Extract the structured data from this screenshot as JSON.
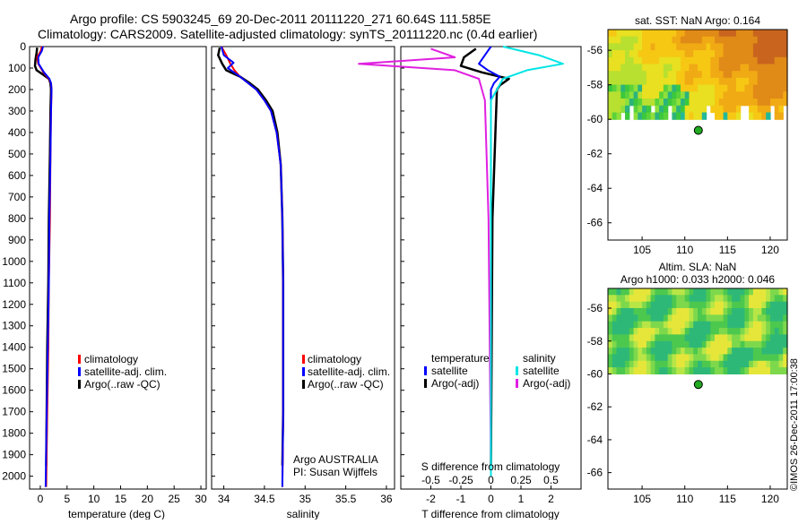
{
  "header": {
    "title_line1": "Argo profile: CS 5903245_69 20-Dec-2011 20111220_271 60.64S 111.585E",
    "title_line2": "Climatology: CARS2009. Satellite-adjusted climatology: synTS_20111220.nc (0.4d earlier)"
  },
  "colors": {
    "climatology": "#ff0000",
    "satellite": "#0000ff",
    "argo": "#000000",
    "sal_satellite": "#00e5e5",
    "sal_argo": "#e020e0",
    "argo_marker": "#22aa22"
  },
  "chart_data": [
    {
      "id": "temperature",
      "type": "line",
      "xlabel": "temperature (deg C)",
      "ylabel": "",
      "xlim": [
        -2,
        31
      ],
      "ylim": [
        2060,
        0
      ],
      "xticks": [
        0,
        5,
        10,
        15,
        20,
        25,
        30
      ],
      "yticks": [
        0,
        100,
        200,
        300,
        400,
        500,
        600,
        700,
        800,
        900,
        1000,
        1100,
        1200,
        1300,
        1400,
        1500,
        1600,
        1700,
        1800,
        1900,
        2000
      ],
      "legend": [
        "climatology",
        "satellite-adj. clim.",
        "Argo(..raw -QC)"
      ],
      "series": [
        {
          "name": "climatology",
          "x": [
            0.3,
            0.1,
            -0.6,
            -0.4,
            0.6,
            1.6,
            2.0,
            2.1,
            2.0,
            1.9,
            1.8,
            1.6,
            1.5,
            1.3,
            1.1
          ],
          "y": [
            0,
            20,
            50,
            80,
            120,
            150,
            170,
            200,
            300,
            500,
            800,
            1100,
            1400,
            1700,
            2050
          ]
        },
        {
          "name": "satellite-adj. clim.",
          "x": [
            0.5,
            0.3,
            -0.4,
            -0.3,
            0.7,
            1.7,
            2.0,
            2.1,
            2.0,
            1.9,
            1.7,
            1.6,
            1.4,
            1.2,
            1.0
          ],
          "y": [
            0,
            20,
            50,
            80,
            120,
            150,
            170,
            200,
            300,
            500,
            800,
            1100,
            1400,
            1700,
            2050
          ]
        },
        {
          "name": "Argo(..raw -QC)",
          "x": [
            -0.6,
            -0.7,
            -0.9,
            -1.0,
            -0.7,
            0.5,
            1.6,
            1.9,
            2.0,
            1.9,
            1.8,
            1.6,
            1.5,
            1.3,
            1.1
          ],
          "y": [
            5,
            30,
            60,
            90,
            110,
            130,
            150,
            170,
            200,
            300,
            500,
            800,
            1100,
            1400,
            1950
          ]
        }
      ]
    },
    {
      "id": "salinity",
      "type": "line",
      "xlabel": "salinity",
      "xlim": [
        33.85,
        36.1
      ],
      "ylim": [
        2060,
        0
      ],
      "xticks": [
        34,
        34.5,
        35,
        35.5,
        36
      ],
      "legend": [
        "climatology",
        "satellite-adj. clim.",
        "Argo(..raw -QC)"
      ],
      "annotation_line1": "Argo AUSTRALIA",
      "annotation_line2": "PI: Susan Wijffels",
      "series": [
        {
          "name": "climatology",
          "x": [
            33.97,
            34.03,
            34.08,
            34.13,
            34.2,
            34.3,
            34.4,
            34.5,
            34.58,
            34.65,
            34.7,
            34.72,
            34.73,
            34.73,
            34.73,
            34.72
          ],
          "y": [
            0,
            40,
            80,
            110,
            140,
            170,
            200,
            250,
            300,
            400,
            550,
            800,
            1100,
            1400,
            1700,
            2050
          ]
        },
        {
          "name": "satellite-adj. clim.",
          "x": [
            33.97,
            34.0,
            34.12,
            34.05,
            34.2,
            34.3,
            34.4,
            34.5,
            34.58,
            34.65,
            34.7,
            34.72,
            34.73,
            34.73,
            34.73,
            34.72
          ],
          "y": [
            0,
            40,
            75,
            100,
            140,
            170,
            200,
            250,
            300,
            400,
            550,
            800,
            1100,
            1400,
            1700,
            2050
          ]
        },
        {
          "name": "Argo(..raw -QC)",
          "x": [
            33.95,
            33.93,
            33.98,
            34.03,
            34.2,
            34.32,
            34.42,
            34.52,
            34.6,
            34.66,
            34.7,
            34.72,
            34.73,
            34.73,
            34.73,
            34.72
          ],
          "y": [
            5,
            40,
            80,
            110,
            140,
            170,
            200,
            250,
            300,
            400,
            550,
            800,
            1100,
            1400,
            1700,
            1950
          ]
        }
      ]
    },
    {
      "id": "difference",
      "type": "line",
      "xlabel": "T difference from climatology",
      "xlabel_top": "S difference from climatology",
      "xlim": [
        -3,
        3
      ],
      "xlim_top": [
        -0.75,
        0.75
      ],
      "ylim": [
        2060,
        0
      ],
      "xticks": [
        -2,
        -1,
        0,
        1,
        2
      ],
      "xticks_top": [
        -0.5,
        -0.25,
        0,
        0.25,
        0.5
      ],
      "legend_temperature_title": "temperature",
      "legend_salinity_title": "salinity",
      "legend_temperature_items": [
        "satellite",
        "Argo(-adj)"
      ],
      "legend_salinity_items": [
        "satellite",
        "Argo(-adj)"
      ],
      "series": [
        {
          "name": "T satellite",
          "x": [
            0.0,
            -0.2,
            -0.4,
            -0.1,
            0.3,
            0.1,
            0.0,
            0.0,
            0.0,
            0.0
          ],
          "y": [
            0,
            40,
            80,
            110,
            140,
            170,
            200,
            300,
            800,
            2000
          ]
        },
        {
          "name": "T Argo(-adj)",
          "x": [
            -0.5,
            -0.9,
            -1.0,
            -0.3,
            0.6,
            0.3,
            0.2,
            0.15,
            0.05,
            0.0
          ],
          "y": [
            10,
            50,
            90,
            120,
            150,
            180,
            200,
            400,
            800,
            1950
          ]
        },
        {
          "name": "S satellite",
          "x": [
            0.1,
            0.4,
            0.6,
            0.3,
            0.1,
            0.0,
            0.0,
            0.0
          ],
          "y": [
            0,
            40,
            80,
            110,
            150,
            250,
            800,
            2000
          ]
        },
        {
          "name": "S Argo(-adj)",
          "x": [
            -0.5,
            -0.3,
            -1.1,
            -0.3,
            -0.1,
            -0.05,
            -0.02,
            0.0
          ],
          "y": [
            10,
            50,
            80,
            110,
            150,
            250,
            800,
            1950
          ]
        }
      ]
    },
    {
      "id": "sst_map",
      "type": "heatmap",
      "title": "sat. SST: NaN Argo: 0.164",
      "xlim": [
        101,
        122
      ],
      "ylim": [
        -67,
        -54.8
      ],
      "xticks": [
        105,
        110,
        115,
        120
      ],
      "yticks": [
        -56,
        -58,
        -60,
        -62,
        -64,
        -66
      ],
      "argo_position": [
        111.585,
        -60.64
      ]
    },
    {
      "id": "sla_map",
      "type": "heatmap",
      "title_line1": "Altim. SLA: NaN",
      "title_line2": "Argo h1000: 0.033 h2000: 0.046",
      "xlim": [
        101,
        122
      ],
      "ylim": [
        -67,
        -54.8
      ],
      "xticks": [
        105,
        110,
        115,
        120
      ],
      "yticks": [
        -56,
        -58,
        -60,
        -62,
        -64,
        -66
      ],
      "argo_position": [
        111.585,
        -60.64
      ]
    }
  ],
  "footer": {
    "credit": "©IMOS 26-Dec-2011 17:00:38"
  }
}
